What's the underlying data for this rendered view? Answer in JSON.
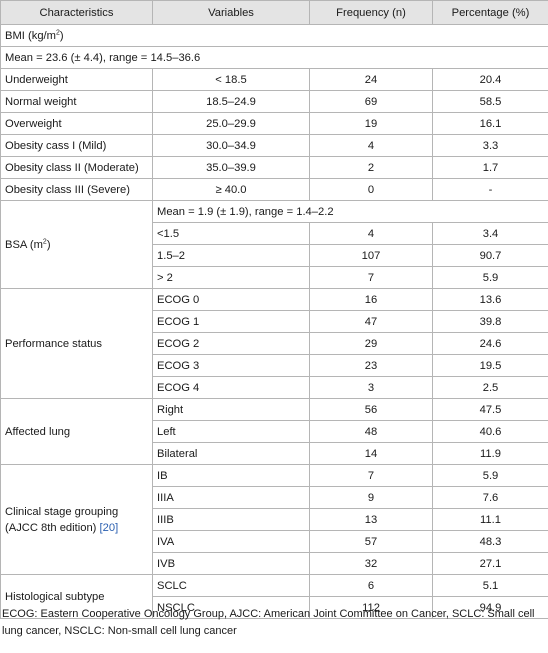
{
  "headers": [
    "Characteristics",
    "Variables",
    "Frequency (n)",
    "Percentage (%)"
  ],
  "bmi": {
    "title": "BMI (kg/m",
    "title_sup": "2",
    "title_end": ")",
    "summary": "Mean = 23.6 (± 4.4), range = 14.5–36.6",
    "rows": [
      {
        "label": "Underweight",
        "range": "< 18.5",
        "n": "24",
        "pct": "20.4"
      },
      {
        "label": "Normal weight",
        "range": "18.5–24.9",
        "n": "69",
        "pct": "58.5"
      },
      {
        "label": "Overweight",
        "range": "25.0–29.9",
        "n": "19",
        "pct": "16.1"
      },
      {
        "label": "Obesity cass I (Mild)",
        "range": "30.0–34.9",
        "n": "4",
        "pct": "3.3"
      },
      {
        "label": "Obesity class II (Moderate)",
        "range": "35.0–39.9",
        "n": "2",
        "pct": "1.7"
      },
      {
        "label": "Obesity class III (Severe)",
        "range": "≥ 40.0",
        "n": "0",
        "pct": "-"
      }
    ]
  },
  "bsa": {
    "label": "BSA (m",
    "label_sup": "2",
    "label_end": ")",
    "summary": "Mean = 1.9 (± 1.9), range = 1.4–2.2",
    "rows": [
      {
        "var": "<1.5",
        "n": "4",
        "pct": "3.4"
      },
      {
        "var": "1.5–2",
        "n": "107",
        "pct": "90.7"
      },
      {
        "var": "> 2",
        "n": "7",
        "pct": "5.9"
      }
    ]
  },
  "performance": {
    "label": "Performance status",
    "rows": [
      {
        "var": "ECOG 0",
        "n": "16",
        "pct": "13.6"
      },
      {
        "var": "ECOG 1",
        "n": "47",
        "pct": "39.8"
      },
      {
        "var": "ECOG 2",
        "n": "29",
        "pct": "24.6"
      },
      {
        "var": "ECOG 3",
        "n": "23",
        "pct": "19.5"
      },
      {
        "var": "ECOG 4",
        "n": "3",
        "pct": "2.5"
      }
    ]
  },
  "lung": {
    "label": "Affected lung",
    "rows": [
      {
        "var": "Right",
        "n": "56",
        "pct": "47.5"
      },
      {
        "var": "Left",
        "n": "48",
        "pct": "40.6"
      },
      {
        "var": "Bilateral",
        "n": "14",
        "pct": "11.9"
      }
    ]
  },
  "stage": {
    "label_line1": "Clinical stage grouping",
    "label_line2": "(AJCC 8th edition)",
    "ref": "[20]",
    "rows": [
      {
        "var": "IB",
        "n": "7",
        "pct": "5.9"
      },
      {
        "var": "IIIA",
        "n": "9",
        "pct": "7.6"
      },
      {
        "var": "IIIB",
        "n": "13",
        "pct": "11.1"
      },
      {
        "var": "IVA",
        "n": "57",
        "pct": "48.3"
      },
      {
        "var": "IVB",
        "n": "32",
        "pct": "27.1"
      }
    ]
  },
  "histology": {
    "label": "Histological subtype",
    "rows": [
      {
        "var": "SCLC",
        "n": "6",
        "pct": "5.1"
      },
      {
        "var": "NSCLC",
        "n": "112",
        "pct": "94.9"
      }
    ]
  },
  "footnote": "ECOG: Eastern Cooperative Oncology Group, AJCC: American Joint Committee on Cancer, SCLC: Small cell lung cancer, NSCLC: Non-small cell lung cancer"
}
